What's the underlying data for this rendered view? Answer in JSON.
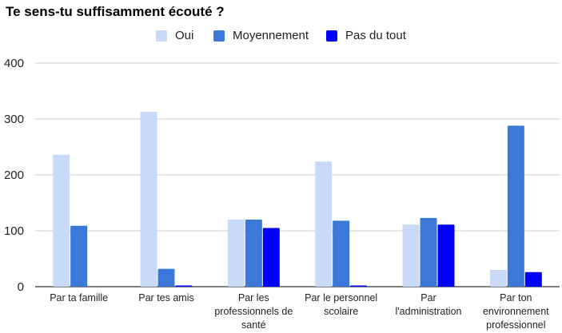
{
  "chart_data": {
    "type": "bar",
    "title": "Te sens-tu suffisamment écouté ?",
    "xlabel": "",
    "ylabel": "",
    "ylim": [
      0,
      400
    ],
    "yticks": [
      0,
      100,
      200,
      300,
      400
    ],
    "grid": true,
    "legend_position": "top",
    "categories": [
      [
        "Par ta famille"
      ],
      [
        "Par tes amis"
      ],
      [
        "Par les",
        "professionnels de",
        "santé"
      ],
      [
        "Par le personnel",
        "scolaire"
      ],
      [
        "Par",
        "l'administration"
      ],
      [
        "Par ton",
        "environnement",
        "professionnel"
      ]
    ],
    "series": [
      {
        "name": "Oui",
        "color": "#c9daf8",
        "values": [
          236,
          313,
          120,
          224,
          111,
          30
        ]
      },
      {
        "name": "Moyennement",
        "color": "#3c78d8",
        "values": [
          109,
          32,
          120,
          118,
          123,
          288
        ]
      },
      {
        "name": "Pas du tout",
        "color": "#0000ff",
        "values": [
          0,
          2,
          105,
          2,
          111,
          26
        ]
      }
    ]
  }
}
